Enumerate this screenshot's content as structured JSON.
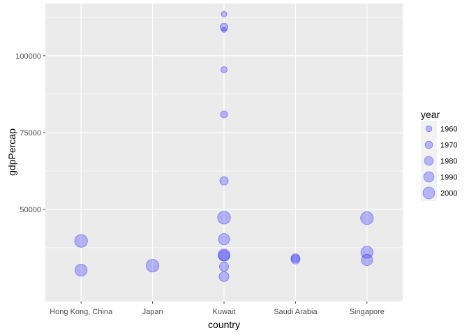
{
  "chart_data": {
    "type": "scatter",
    "title": "",
    "xlabel": "country",
    "ylabel": "gdpPercap",
    "categories": [
      "Hong Kong, China",
      "Japan",
      "Kuwait",
      "Saudi Arabia",
      "Singapore"
    ],
    "y_ticks": [
      50000,
      75000,
      100000
    ],
    "y_tick_labels": [
      "50000",
      "75000",
      "100000"
    ],
    "ylim": [
      20000,
      117000
    ],
    "size_variable": "year",
    "size_range": [
      1952,
      2007
    ],
    "grid": true,
    "legend": {
      "title": "year",
      "position": "right",
      "entries": [
        {
          "label": "1960",
          "value": 1960
        },
        {
          "label": "1970",
          "value": 1970
        },
        {
          "label": "1980",
          "value": 1980
        },
        {
          "label": "1990",
          "value": 1990
        },
        {
          "label": "2000",
          "value": 2000
        }
      ]
    },
    "points": [
      {
        "country": "Hong Kong, China",
        "year": 2002,
        "gdpPercap": 30209
      },
      {
        "country": "Hong Kong, China",
        "year": 2007,
        "gdpPercap": 39725
      },
      {
        "country": "Japan",
        "year": 2007,
        "gdpPercap": 31656
      },
      {
        "country": "Kuwait",
        "year": 1952,
        "gdpPercap": 108382
      },
      {
        "country": "Kuwait",
        "year": 1957,
        "gdpPercap": 113523
      },
      {
        "country": "Kuwait",
        "year": 1962,
        "gdpPercap": 95458
      },
      {
        "country": "Kuwait",
        "year": 1967,
        "gdpPercap": 80895
      },
      {
        "country": "Kuwait",
        "year": 1972,
        "gdpPercap": 109348
      },
      {
        "country": "Kuwait",
        "year": 1977,
        "gdpPercap": 59265
      },
      {
        "country": "Kuwait",
        "year": 1982,
        "gdpPercap": 31354
      },
      {
        "country": "Kuwait",
        "year": 1987,
        "gdpPercap": 28118
      },
      {
        "country": "Kuwait",
        "year": 1992,
        "gdpPercap": 34933
      },
      {
        "country": "Kuwait",
        "year": 1997,
        "gdpPercap": 40301
      },
      {
        "country": "Kuwait",
        "year": 2002,
        "gdpPercap": 35110
      },
      {
        "country": "Kuwait",
        "year": 2007,
        "gdpPercap": 47307
      },
      {
        "country": "Saudi Arabia",
        "year": 1977,
        "gdpPercap": 34168
      },
      {
        "country": "Saudi Arabia",
        "year": 1982,
        "gdpPercap": 33693
      },
      {
        "country": "Singapore",
        "year": 1997,
        "gdpPercap": 33519
      },
      {
        "country": "Singapore",
        "year": 2002,
        "gdpPercap": 36023
      },
      {
        "country": "Singapore",
        "year": 2007,
        "gdpPercap": 47143
      }
    ],
    "colors": {
      "point_fill": "#0000ff",
      "point_stroke": "#0000ff",
      "panel_background": "#ebebeb",
      "grid_major": "#ffffff",
      "legend_key_background": "#f2f2f2"
    }
  }
}
